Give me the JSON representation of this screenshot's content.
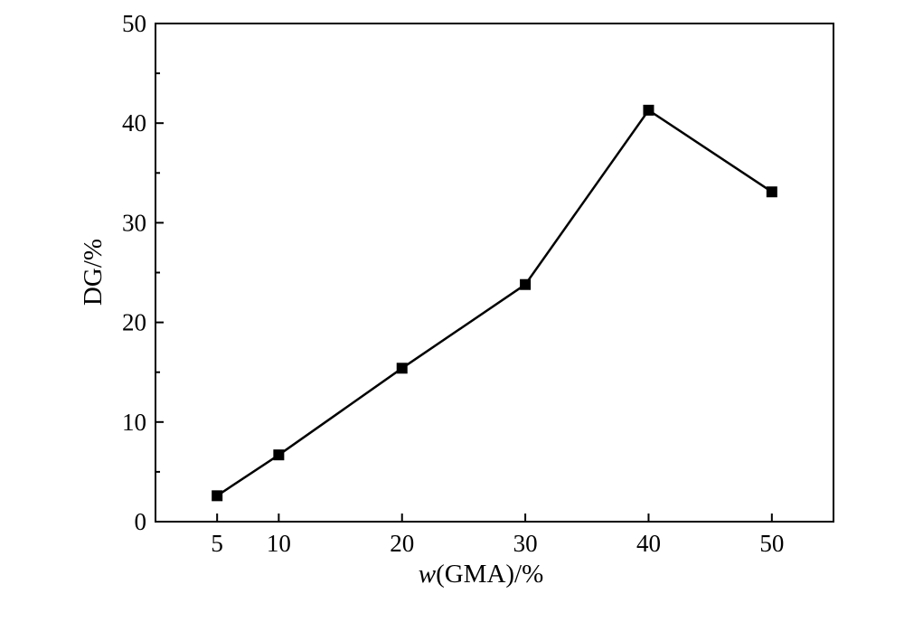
{
  "chart_data": {
    "type": "line",
    "title": "",
    "xlabel_italic": "w",
    "xlabel_rest": "(GMA)/%",
    "ylabel": "DG/%",
    "x": [
      5,
      10,
      20,
      30,
      40,
      50
    ],
    "series": [
      {
        "values": [
          2.6,
          6.7,
          15.4,
          23.8,
          41.3,
          33.1
        ]
      }
    ],
    "x_ticks": [
      "5",
      "10",
      "20",
      "30",
      "40",
      "50"
    ],
    "y_ticks": [
      "0",
      "10",
      "20",
      "30",
      "40",
      "50"
    ],
    "xlim": [
      0,
      55
    ],
    "ylim": [
      0,
      50
    ],
    "grid": false,
    "legend": "none",
    "marker": "square",
    "line_color": "#000000"
  }
}
